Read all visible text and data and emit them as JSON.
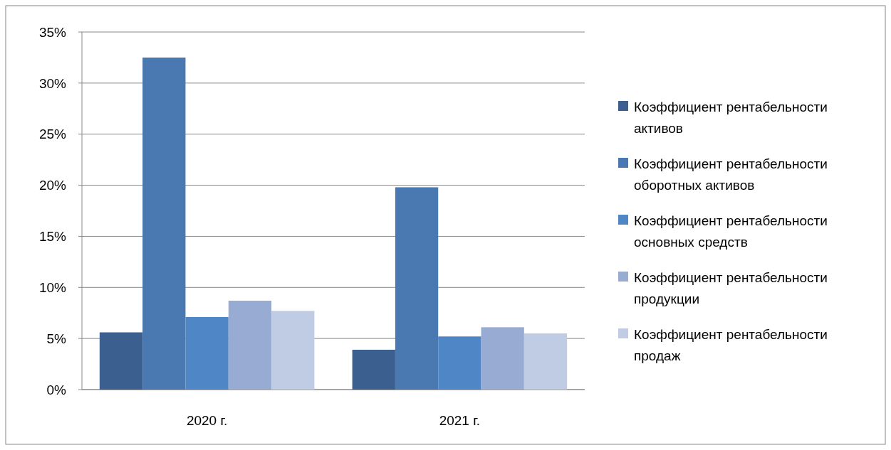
{
  "chart_data": {
    "type": "bar",
    "categories": [
      "2020 г.",
      "2021 г."
    ],
    "series": [
      {
        "name": "Коэффициент рентабельности активов",
        "color": "#3b5f8f",
        "values": [
          5.6,
          3.9
        ]
      },
      {
        "name": "Коэффициент рентабельности оборотных активов",
        "color": "#4a78b0",
        "values": [
          32.5,
          19.8
        ]
      },
      {
        "name": "Коэффициент рентабельности основных средств",
        "color": "#4f86c6",
        "values": [
          7.1,
          5.2
        ]
      },
      {
        "name": "Коэффициент рентабельности продукции",
        "color": "#98acd3",
        "values": [
          8.7,
          6.1
        ]
      },
      {
        "name": "Коэффициент рентабельности продаж",
        "color": "#c0cce4",
        "values": [
          7.7,
          5.5
        ]
      }
    ],
    "ylim": [
      0,
      35
    ],
    "yticks": [
      {
        "value": 0,
        "label": "0%"
      },
      {
        "value": 5,
        "label": "5%"
      },
      {
        "value": 10,
        "label": "10%"
      },
      {
        "value": 15,
        "label": "15%"
      },
      {
        "value": 20,
        "label": "20%"
      },
      {
        "value": 25,
        "label": "25%"
      },
      {
        "value": 30,
        "label": "30%"
      },
      {
        "value": 35,
        "label": "35%"
      }
    ],
    "grid": "y",
    "legend": "right"
  }
}
